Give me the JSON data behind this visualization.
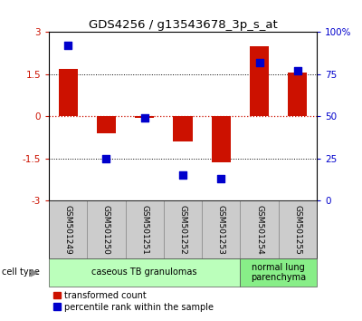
{
  "title": "GDS4256 / g13543678_3p_s_at",
  "samples": [
    "GSM501249",
    "GSM501250",
    "GSM501251",
    "GSM501252",
    "GSM501253",
    "GSM501254",
    "GSM501255"
  ],
  "transformed_count": [
    1.7,
    -0.6,
    -0.05,
    -0.9,
    -1.65,
    2.5,
    1.55
  ],
  "percentile_raw": [
    92,
    25,
    49,
    15,
    13,
    82,
    77
  ],
  "cell_type_groups": [
    {
      "label": "caseous TB granulomas",
      "start": 0,
      "end": 5,
      "color": "#bbffbb"
    },
    {
      "label": "normal lung\nparenchyma",
      "start": 5,
      "end": 7,
      "color": "#88ee88"
    }
  ],
  "ylim_left": [
    -3,
    3
  ],
  "yticks_left": [
    -3,
    -1.5,
    0,
    1.5,
    3
  ],
  "yticks_right": [
    0,
    25,
    50,
    75,
    100
  ],
  "yright_labels": [
    "0",
    "25",
    "50",
    "75",
    "100%"
  ],
  "red_color": "#cc1100",
  "blue_color": "#0000cc",
  "bar_width": 0.5,
  "dot_size": 40,
  "background_color": "#ffffff"
}
